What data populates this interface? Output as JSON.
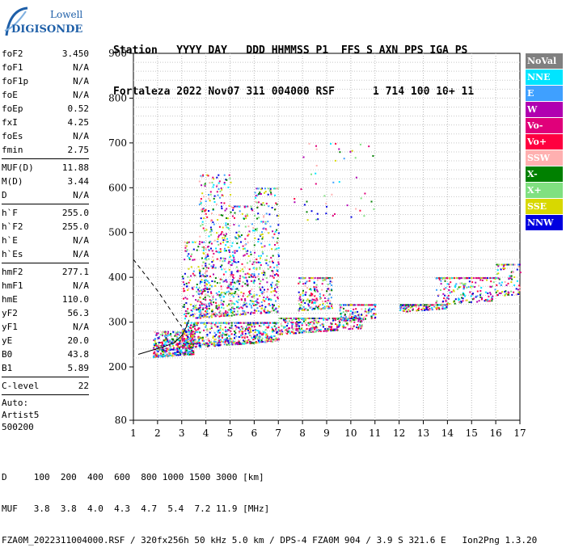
{
  "logo": {
    "line1": "Lowell",
    "line2": "DIGISONDE"
  },
  "header": {
    "line1": [
      "Station",
      "YYYY",
      "DAY",
      "DDD",
      "HHMMSS",
      "P1",
      "FFS",
      "S",
      "AXN",
      "PPS",
      "IGA",
      "PS"
    ],
    "line2": [
      "Fortaleza",
      "2022",
      "Nov07",
      "311",
      "004000",
      "RSF",
      "",
      "1",
      "714",
      "100",
      "10+",
      "11"
    ]
  },
  "params": [
    {
      "group": [
        {
          "label": "foF2",
          "value": "3.450"
        },
        {
          "label": "foF1",
          "value": "N/A"
        },
        {
          "label": "foF1p",
          "value": "N/A"
        },
        {
          "label": "foE",
          "value": "N/A"
        },
        {
          "label": "foEp",
          "value": "0.52"
        },
        {
          "label": "fxI",
          "value": "4.25"
        },
        {
          "label": "foEs",
          "value": "N/A"
        },
        {
          "label": "fmin",
          "value": "2.75"
        }
      ]
    },
    {
      "group": [
        {
          "label": "MUF(D)",
          "value": "11.88"
        },
        {
          "label": "M(D)",
          "value": "3.44"
        },
        {
          "label": "D",
          "value": "N/A"
        }
      ]
    },
    {
      "group": [
        {
          "label": "h`F",
          "value": "255.0"
        },
        {
          "label": "h`F2",
          "value": "255.0"
        },
        {
          "label": "h`E",
          "value": "N/A"
        },
        {
          "label": "h`Es",
          "value": "N/A"
        }
      ]
    },
    {
      "group": [
        {
          "label": "hmF2",
          "value": "277.1"
        },
        {
          "label": "hmF1",
          "value": "N/A"
        },
        {
          "label": "hmE",
          "value": "110.0"
        },
        {
          "label": "yF2",
          "value": "56.3"
        },
        {
          "label": "yF1",
          "value": "N/A"
        },
        {
          "label": "yE",
          "value": "20.0"
        },
        {
          "label": "B0",
          "value": "43.8"
        },
        {
          "label": "B1",
          "value": "5.89"
        }
      ]
    },
    {
      "group": [
        {
          "label": "C-level",
          "value": "22"
        }
      ]
    }
  ],
  "auto": [
    "Auto:",
    "Artist5",
    "500200"
  ],
  "legend": [
    {
      "label": "NoVal",
      "color": "#808080"
    },
    {
      "label": "NNE",
      "color": "#00e5ff"
    },
    {
      "label": "E",
      "color": "#3fa0ff"
    },
    {
      "label": "W",
      "color": "#b000b0"
    },
    {
      "label": "Vo-",
      "color": "#e0007a"
    },
    {
      "label": "Vo+",
      "color": "#ff0040"
    },
    {
      "label": "SSW",
      "color": "#ffb0b0"
    },
    {
      "label": "X-",
      "color": "#008000"
    },
    {
      "label": "X+",
      "color": "#80e080"
    },
    {
      "label": "SSE",
      "color": "#d8d800"
    },
    {
      "label": "NNW",
      "color": "#0000e0"
    }
  ],
  "footer": {
    "d_label": "D",
    "d_values": [
      "100",
      "200",
      "400",
      "600",
      "800",
      "1000",
      "1500",
      "3000",
      "[km]"
    ],
    "muf_label": "MUF",
    "muf_values": [
      "3.8",
      "3.8",
      "4.0",
      "4.3",
      "4.7",
      "5.4",
      "7.2",
      "11.9",
      "[MHz]"
    ],
    "info": "FZA0M_2022311004000.RSF / 320fx256h 50 kHz 5.0 km / DPS-4 FZA0M 904 / 3.9 S 321.6 E   Ion2Png 1.3.20"
  },
  "chart_data": {
    "type": "scatter",
    "x_ticks": [
      1,
      2,
      3,
      4,
      5,
      6,
      7,
      8,
      9,
      10,
      11,
      12,
      13,
      14,
      15,
      16,
      17
    ],
    "y_ticks": [
      80,
      200,
      300,
      400,
      500,
      600,
      700,
      800,
      900
    ],
    "x_range": [
      1,
      17
    ],
    "y_range": [
      80,
      900
    ],
    "grid": true,
    "legend_position": "right",
    "clusters": [
      {
        "f": [
          1.8,
          3.5
        ],
        "h": [
          220,
          280
        ],
        "n": 420
      },
      {
        "f": [
          3.0,
          7.0
        ],
        "h": [
          235,
          300
        ],
        "n": 650
      },
      {
        "f": [
          3.0,
          4.0
        ],
        "h": [
          300,
          480
        ],
        "n": 160
      },
      {
        "f": [
          3.7,
          5.0
        ],
        "h": [
          300,
          630
        ],
        "n": 420
      },
      {
        "f": [
          5.0,
          6.0
        ],
        "h": [
          300,
          560
        ],
        "n": 260
      },
      {
        "f": [
          6.0,
          7.0
        ],
        "h": [
          300,
          600
        ],
        "n": 260
      },
      {
        "f": [
          7.0,
          10.5
        ],
        "h": [
          250,
          310
        ],
        "n": 420
      },
      {
        "f": [
          7.8,
          9.2
        ],
        "h": [
          300,
          400
        ],
        "n": 200
      },
      {
        "f": [
          9.5,
          11.0
        ],
        "h": [
          270,
          340
        ],
        "n": 160
      },
      {
        "f": [
          12.0,
          14.0
        ],
        "h": [
          280,
          340
        ],
        "n": 200
      },
      {
        "f": [
          13.5,
          16.0
        ],
        "h": [
          290,
          400
        ],
        "n": 220
      },
      {
        "f": [
          16.0,
          17.0
        ],
        "h": [
          300,
          430
        ],
        "n": 100
      },
      {
        "f": [
          7.5,
          11.0
        ],
        "h": [
          500,
          700
        ],
        "n": 50
      }
    ],
    "trace_dashed": [
      [
        1.0,
        440
      ],
      [
        1.5,
        405
      ],
      [
        2.0,
        370
      ],
      [
        2.5,
        330
      ],
      [
        2.8,
        305
      ],
      [
        3.0,
        290
      ]
    ],
    "trace_solid": [
      [
        1.2,
        228
      ],
      [
        1.7,
        236
      ],
      [
        2.2,
        244
      ],
      [
        2.7,
        254
      ],
      [
        3.0,
        270
      ],
      [
        3.2,
        290
      ],
      [
        3.3,
        305
      ]
    ]
  }
}
